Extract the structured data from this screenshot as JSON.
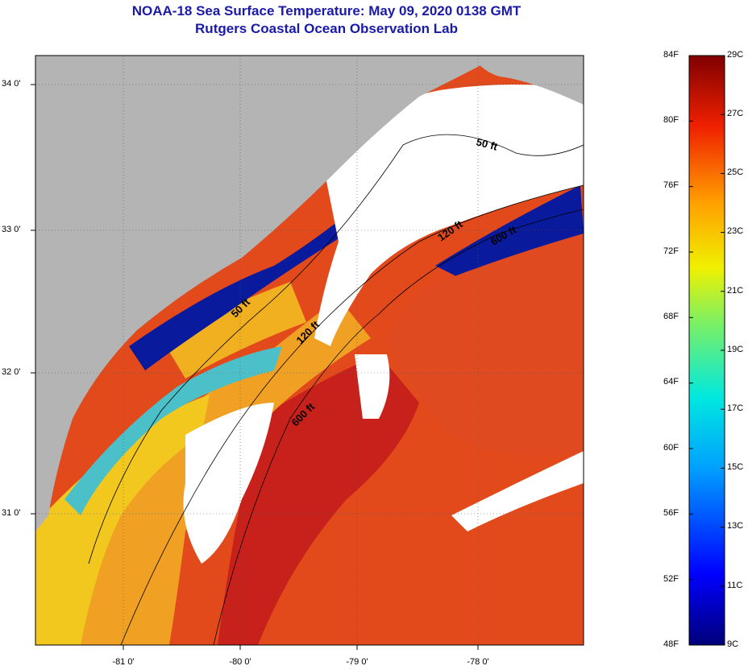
{
  "title": "NOAA-18 Sea Surface Temperature:  May 09, 2020 0138 GMT",
  "subtitle": "Rutgers Coastal Ocean Observation Lab",
  "lat_labels": [
    "34 0'",
    "33 0'",
    "32 0'",
    "31 0'"
  ],
  "lon_labels": [
    "-81 0'",
    "-80 0'",
    "-79 0'",
    "-78 0'"
  ],
  "depth_contours": [
    "50 ft",
    "120 ft",
    "600 ft"
  ],
  "colorbar": {
    "fahrenheit": [
      "84F",
      "80F",
      "76F",
      "72F",
      "68F",
      "64F",
      "60F",
      "56F",
      "52F",
      "48F"
    ],
    "celsius": [
      "29C",
      "27C",
      "25C",
      "23C",
      "21C",
      "19C",
      "17C",
      "15C",
      "13C",
      "11C",
      "9C"
    ]
  },
  "colors": {
    "land": "#b4b4b4",
    "cloud": "#ffffff",
    "cold": "#0a1a9c",
    "cool": "#3fb0d8",
    "mild": "#e8d02a",
    "warm": "#f0a024",
    "hot": "#e8401a",
    "hottest": "#c81e10"
  }
}
